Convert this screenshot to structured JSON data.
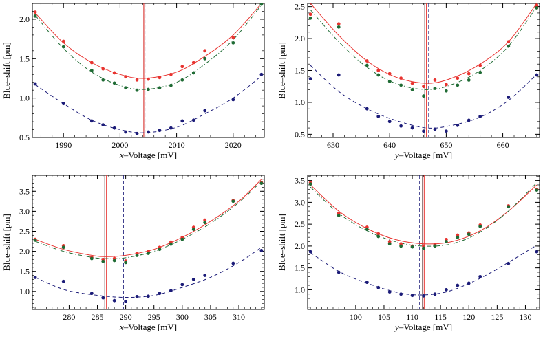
{
  "colors": {
    "red": "#e8332f",
    "green": "#1f6b34",
    "navy": "#1b1b78",
    "vline_dark": "#5a3f3f",
    "frame": "#000000"
  },
  "chart_data": [
    {
      "type": "scatter",
      "xlabel_var": "x",
      "xlabel_rest": "–Voltage  [mV]",
      "ylabel": "Blue–shift  [pm]",
      "xlim": [
        1984.5,
        2025.5
      ],
      "ylim": [
        0.5,
        2.2
      ],
      "xticks": [
        1990,
        2000,
        2010,
        2020
      ],
      "yticks": [
        0.5,
        1.0,
        1.5,
        2.0
      ],
      "yfmt": 1,
      "vlines": [
        {
          "x": 2004.2,
          "color": "#5a3f3f",
          "dash": false
        },
        {
          "x": 2004.2,
          "color": "#e8332f",
          "dash": false
        },
        {
          "x": 2004.4,
          "color": "#1b1b78",
          "dash": true
        }
      ],
      "series": [
        {
          "color": "#e8332f",
          "dash": "none",
          "fit": [
            [
              1985,
              2.08
            ],
            [
              1990,
              1.7
            ],
            [
              1995,
              1.45
            ],
            [
              2000,
              1.3
            ],
            [
              2004.3,
              1.25
            ],
            [
              2010,
              1.33
            ],
            [
              2015,
              1.53
            ],
            [
              2020,
              1.8
            ],
            [
              2025,
              2.2
            ]
          ],
          "x": [
            1985,
            1990,
            1995,
            1997,
            1999,
            2001,
            2003,
            2005,
            2007,
            2009,
            2011,
            2013,
            2015,
            2020,
            2025
          ],
          "y": [
            2.09,
            1.72,
            1.45,
            1.37,
            1.32,
            1.27,
            1.23,
            1.24,
            1.26,
            1.3,
            1.4,
            1.45,
            1.6,
            1.77,
            2.2
          ]
        },
        {
          "color": "#1f6b34",
          "dash": "6,3,1,3",
          "fit": [
            [
              1985,
              2.05
            ],
            [
              1990,
              1.63
            ],
            [
              1995,
              1.33
            ],
            [
              2000,
              1.16
            ],
            [
              2004.4,
              1.11
            ],
            [
              2010,
              1.2
            ],
            [
              2015,
              1.43
            ],
            [
              2020,
              1.74
            ],
            [
              2025,
              2.18
            ]
          ],
          "x": [
            1985,
            1990,
            1995,
            1997,
            1999,
            2001,
            2003,
            2005,
            2007,
            2009,
            2011,
            2013,
            2015,
            2020,
            2025
          ],
          "y": [
            2.04,
            1.65,
            1.35,
            1.23,
            1.19,
            1.13,
            1.1,
            1.11,
            1.13,
            1.16,
            1.23,
            1.32,
            1.5,
            1.7,
            2.19
          ]
        },
        {
          "color": "#1b1b78",
          "dash": "5,4",
          "fit": [
            [
              1985,
              1.17
            ],
            [
              1990,
              0.93
            ],
            [
              1995,
              0.72
            ],
            [
              2000,
              0.6
            ],
            [
              2004.4,
              0.56
            ],
            [
              2010,
              0.63
            ],
            [
              2015,
              0.8
            ],
            [
              2020,
              1.0
            ],
            [
              2025,
              1.28
            ]
          ],
          "x": [
            1985,
            1990,
            1995,
            1997,
            1999,
            2001,
            2003,
            2005,
            2007,
            2009,
            2011,
            2013,
            2015,
            2020,
            2025
          ],
          "y": [
            1.18,
            0.93,
            0.71,
            0.66,
            0.62,
            0.57,
            0.55,
            0.57,
            0.59,
            0.62,
            0.71,
            0.72,
            0.84,
            0.98,
            1.3
          ]
        }
      ]
    },
    {
      "type": "scatter",
      "xlabel_var": "y",
      "xlabel_rest": "–Voltage  [mV]",
      "ylabel": "Blue–shift  [pm]",
      "xlim": [
        625.5,
        666.5
      ],
      "ylim": [
        0.45,
        2.55
      ],
      "xticks": [
        630,
        640,
        650,
        660
      ],
      "yticks": [
        0.5,
        1.0,
        1.5,
        2.0,
        2.5
      ],
      "yfmt": 1,
      "vlines": [
        {
          "x": 646.2,
          "color": "#5a3f3f",
          "dash": false
        },
        {
          "x": 646.5,
          "color": "#e8332f",
          "dash": false
        },
        {
          "x": 646.9,
          "color": "#1b1b78",
          "dash": true
        }
      ],
      "series": [
        {
          "color": "#e8332f",
          "dash": "none",
          "fit": [
            [
              626,
              2.55
            ],
            [
              631,
              2.05
            ],
            [
              636,
              1.65
            ],
            [
              641,
              1.4
            ],
            [
              646.5,
              1.3
            ],
            [
              651,
              1.38
            ],
            [
              656,
              1.6
            ],
            [
              661,
              1.95
            ],
            [
              666,
              2.55
            ]
          ],
          "x": [
            626,
            631,
            636,
            638,
            640,
            642,
            644,
            646,
            648,
            650,
            652,
            654,
            656,
            661,
            666
          ],
          "y": [
            2.38,
            2.23,
            1.65,
            1.5,
            1.45,
            1.38,
            1.3,
            1.25,
            1.35,
            1.28,
            1.38,
            1.45,
            1.58,
            1.95,
            2.52
          ]
        },
        {
          "color": "#1f6b34",
          "dash": "6,3,1,3",
          "fit": [
            [
              626,
              2.45
            ],
            [
              631,
              1.95
            ],
            [
              636,
              1.55
            ],
            [
              641,
              1.3
            ],
            [
              646.5,
              1.2
            ],
            [
              651,
              1.28
            ],
            [
              656,
              1.5
            ],
            [
              661,
              1.88
            ],
            [
              666,
              2.5
            ]
          ],
          "x": [
            626,
            631,
            636,
            638,
            640,
            642,
            644,
            646,
            648,
            650,
            652,
            654,
            656,
            661,
            666
          ],
          "y": [
            2.32,
            2.18,
            1.58,
            1.43,
            1.33,
            1.27,
            1.2,
            1.1,
            1.22,
            1.18,
            1.27,
            1.35,
            1.47,
            1.88,
            2.48
          ]
        },
        {
          "color": "#1b1b78",
          "dash": "5,4",
          "fit": [
            [
              626,
              1.58
            ],
            [
              631,
              1.17
            ],
            [
              636,
              0.9
            ],
            [
              641,
              0.72
            ],
            [
              646.5,
              0.6
            ],
            [
              651,
              0.64
            ],
            [
              656,
              0.77
            ],
            [
              661,
              1.03
            ],
            [
              666,
              1.44
            ]
          ],
          "x": [
            626,
            631,
            636,
            638,
            640,
            642,
            644,
            646,
            648,
            650,
            652,
            654,
            656,
            661,
            666
          ],
          "y": [
            1.37,
            1.43,
            0.9,
            0.78,
            0.7,
            0.63,
            0.6,
            0.55,
            0.58,
            0.55,
            0.64,
            0.72,
            0.78,
            1.08,
            1.43
          ]
        }
      ]
    },
    {
      "type": "scatter",
      "xlabel_var": "x",
      "xlabel_rest": "–Voltage  [mV]",
      "ylabel": "Blue–shift  [pm]",
      "xlim": [
        273.5,
        314.5
      ],
      "ylim": [
        0.55,
        3.9
      ],
      "xticks": [
        280,
        285,
        290,
        295,
        300,
        305,
        310
      ],
      "yticks": [
        1.0,
        1.5,
        2.0,
        2.5,
        3.0,
        3.5
      ],
      "yfmt": 1,
      "vlines": [
        {
          "x": 286.3,
          "color": "#5a3f3f",
          "dash": false
        },
        {
          "x": 286.6,
          "color": "#e8332f",
          "dash": false
        },
        {
          "x": 289.6,
          "color": "#1b1b78",
          "dash": true
        }
      ],
      "series": [
        {
          "color": "#e8332f",
          "dash": "none",
          "fit": [
            [
              274,
              2.3
            ],
            [
              279,
              2.05
            ],
            [
              284,
              1.9
            ],
            [
              286.6,
              1.87
            ],
            [
              290,
              1.9
            ],
            [
              295,
              2.05
            ],
            [
              300,
              2.35
            ],
            [
              305,
              2.75
            ],
            [
              310,
              3.25
            ],
            [
              314,
              3.8
            ]
          ],
          "x": [
            274,
            279,
            284,
            286,
            288,
            290,
            292,
            294,
            296,
            298,
            300,
            302,
            304,
            309,
            314
          ],
          "y": [
            2.3,
            2.14,
            1.85,
            1.8,
            1.82,
            1.76,
            1.95,
            2.0,
            2.1,
            2.23,
            2.35,
            2.6,
            2.78,
            3.27,
            3.72
          ]
        },
        {
          "color": "#1f6b34",
          "dash": "6,3,1,3",
          "fit": [
            [
              274,
              2.25
            ],
            [
              279,
              2.0
            ],
            [
              284,
              1.85
            ],
            [
              286.6,
              1.82
            ],
            [
              290,
              1.84
            ],
            [
              295,
              2.0
            ],
            [
              300,
              2.3
            ],
            [
              305,
              2.7
            ],
            [
              310,
              3.22
            ],
            [
              314,
              3.75
            ]
          ],
          "x": [
            274,
            279,
            284,
            286,
            288,
            290,
            292,
            294,
            296,
            298,
            300,
            302,
            304,
            309,
            314
          ],
          "y": [
            2.28,
            2.1,
            1.82,
            1.75,
            1.77,
            1.72,
            1.9,
            1.95,
            2.05,
            2.18,
            2.3,
            2.55,
            2.72,
            3.25,
            3.7
          ]
        },
        {
          "color": "#1b1b78",
          "dash": "5,4",
          "fit": [
            [
              274,
              1.35
            ],
            [
              279,
              1.05
            ],
            [
              284,
              0.92
            ],
            [
              289.6,
              0.85
            ],
            [
              295,
              0.9
            ],
            [
              300,
              1.1
            ],
            [
              305,
              1.35
            ],
            [
              310,
              1.72
            ],
            [
              314,
              2.1
            ]
          ],
          "x": [
            274,
            279,
            284,
            286,
            288,
            290,
            292,
            294,
            296,
            298,
            300,
            302,
            304,
            309,
            314
          ],
          "y": [
            1.35,
            1.25,
            0.95,
            0.84,
            0.77,
            0.75,
            0.87,
            0.88,
            0.95,
            1.02,
            1.17,
            1.3,
            1.4,
            1.7,
            2.02
          ]
        }
      ]
    },
    {
      "type": "scatter",
      "xlabel_var": "y",
      "xlabel_rest": "–Voltage  [mV]",
      "ylabel": "Blue–shift  [pm]",
      "xlim": [
        91.5,
        132.5
      ],
      "ylim": [
        0.55,
        3.62
      ],
      "xticks": [
        100,
        105,
        110,
        115,
        120,
        125,
        130
      ],
      "yticks": [
        1.0,
        1.5,
        2.0,
        2.5,
        3.0,
        3.5
      ],
      "yfmt": 1,
      "vlines": [
        {
          "x": 111.3,
          "color": "#1b1b78",
          "dash": true
        },
        {
          "x": 111.8,
          "color": "#5a3f3f",
          "dash": false
        },
        {
          "x": 112.1,
          "color": "#e8332f",
          "dash": false
        }
      ],
      "series": [
        {
          "color": "#e8332f",
          "dash": "none",
          "fit": [
            [
              92,
              3.4
            ],
            [
              97,
              2.8
            ],
            [
              102,
              2.4
            ],
            [
              107,
              2.15
            ],
            [
              112.1,
              2.05
            ],
            [
              117,
              2.1
            ],
            [
              122,
              2.35
            ],
            [
              127,
              2.8
            ],
            [
              132,
              3.4
            ]
          ],
          "x": [
            92,
            97,
            102,
            104,
            106,
            108,
            110,
            112,
            114,
            116,
            118,
            120,
            122,
            127,
            132
          ],
          "y": [
            3.45,
            2.75,
            2.43,
            2.28,
            2.1,
            2.05,
            2.0,
            2.0,
            2.03,
            2.15,
            2.25,
            2.3,
            2.48,
            2.92,
            3.3
          ]
        },
        {
          "color": "#1f6b34",
          "dash": "6,3,1,3",
          "fit": [
            [
              92,
              3.35
            ],
            [
              97,
              2.75
            ],
            [
              102,
              2.35
            ],
            [
              107,
              2.1
            ],
            [
              111.8,
              2.0
            ],
            [
              117,
              2.05
            ],
            [
              122,
              2.32
            ],
            [
              127,
              2.8
            ],
            [
              132,
              3.45
            ]
          ],
          "x": [
            92,
            97,
            102,
            104,
            106,
            108,
            110,
            112,
            114,
            116,
            118,
            120,
            122,
            127,
            132
          ],
          "y": [
            3.42,
            2.7,
            2.38,
            2.22,
            2.05,
            2.0,
            1.98,
            1.95,
            2.0,
            2.1,
            2.2,
            2.27,
            2.45,
            2.9,
            3.28
          ]
        },
        {
          "color": "#1b1b78",
          "dash": "5,4",
          "fit": [
            [
              92,
              1.85
            ],
            [
              97,
              1.42
            ],
            [
              102,
              1.15
            ],
            [
              107,
              0.95
            ],
            [
              111.3,
              0.88
            ],
            [
              116,
              0.95
            ],
            [
              121,
              1.2
            ],
            [
              126,
              1.55
            ],
            [
              132,
              2.02
            ]
          ],
          "x": [
            92,
            97,
            102,
            104,
            106,
            108,
            110,
            112,
            114,
            116,
            118,
            120,
            122,
            127,
            132
          ],
          "y": [
            1.87,
            1.4,
            1.17,
            1.05,
            0.95,
            0.9,
            0.87,
            0.86,
            0.9,
            1.0,
            1.1,
            1.15,
            1.3,
            1.6,
            1.87
          ]
        }
      ]
    }
  ]
}
